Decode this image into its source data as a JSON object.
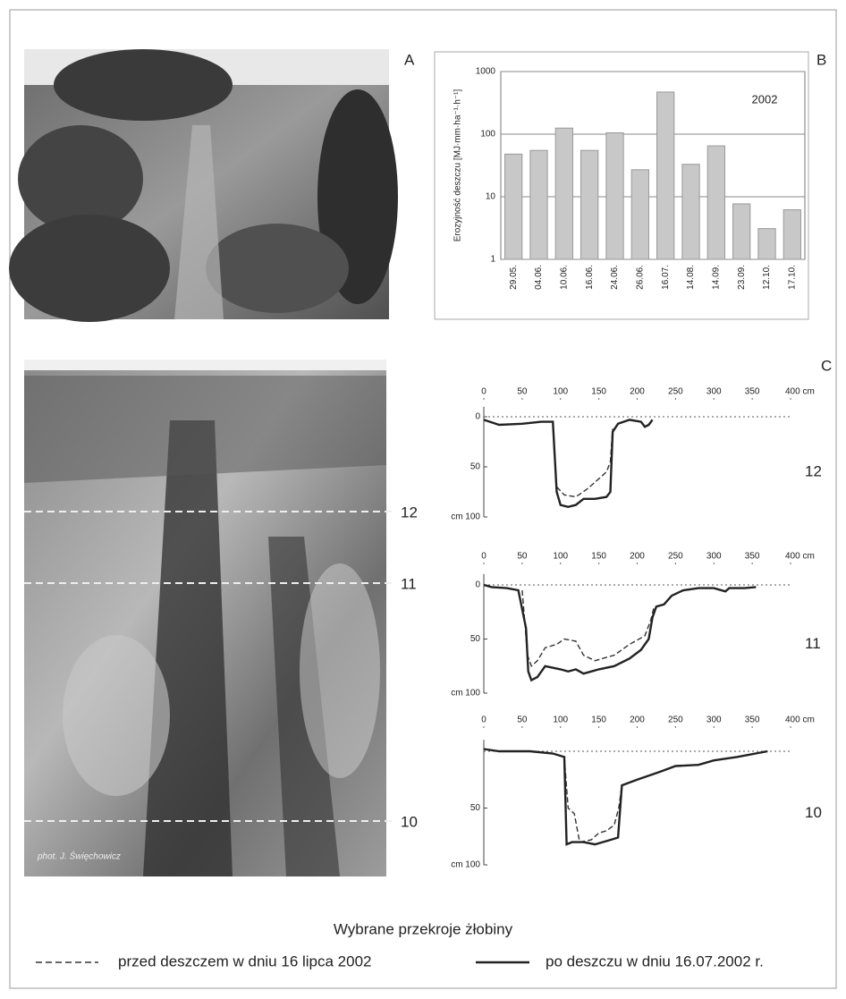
{
  "panel_labels": [
    "A",
    "B",
    "C"
  ],
  "photo_sections": [
    "12",
    "11",
    "10"
  ],
  "photo_credit": "phot. J. Święchowicz",
  "legend_title": "Wybrane przekroje żłobiny",
  "chart_data": [
    {
      "type": "bar",
      "y_label": "Erozyjność deszczu [MJ·mm·ha⁻¹·h⁻¹]",
      "annotation": "2002",
      "categories": [
        "29.05.",
        "04.06.",
        "10.06.",
        "16.06.",
        "24.06.",
        "26.06.",
        "16.07.",
        "14.08.",
        "14.09.",
        "23.09.",
        "12.10.",
        "17.10."
      ],
      "values": [
        48,
        55,
        125,
        55,
        105,
        27,
        470,
        33,
        65,
        7.7,
        3.1,
        6.2
      ],
      "color": "#c8c8c8",
      "ylim": [
        1,
        1000
      ],
      "yticks": [
        1,
        10,
        100,
        1000
      ],
      "log_scale": true,
      "grid": true
    },
    {
      "type": "line",
      "title": "12",
      "xlim": [
        0,
        400
      ],
      "xticks": [
        0,
        50,
        100,
        150,
        200,
        250,
        300,
        350,
        {
          "value": 400,
          "label": "400 cm"
        }
      ],
      "ylim": [
        -10,
        100
      ],
      "yticks": [
        0,
        50,
        {
          "value": 100,
          "label": "cm 100"
        }
      ],
      "y_inverted": true,
      "series": [
        {
          "name": "przed deszczem w dniu 16 lipca 2002",
          "color": "#333333",
          "dashed": true,
          "x": [
            95,
            105,
            120,
            135,
            150,
            160,
            165,
            168
          ],
          "values": [
            70,
            78,
            80,
            72,
            62,
            55,
            45,
            12
          ]
        },
        {
          "name": "po deszczu w dniu 16.07.2002 r.",
          "color": "#222222",
          "dashed": false,
          "x": [
            0,
            20,
            50,
            75,
            90,
            95,
            100,
            110,
            120,
            130,
            145,
            160,
            165,
            168,
            175,
            190,
            205,
            210,
            215,
            220
          ],
          "values": [
            3,
            8,
            7,
            5,
            5,
            75,
            88,
            90,
            88,
            82,
            82,
            80,
            75,
            15,
            7,
            3,
            5,
            10,
            8,
            3
          ]
        }
      ]
    },
    {
      "type": "line",
      "title": "11",
      "xlim": [
        0,
        400
      ],
      "xticks": [
        0,
        50,
        100,
        150,
        200,
        250,
        300,
        350,
        {
          "value": 400,
          "label": "400 cm"
        }
      ],
      "ylim": [
        -10,
        100
      ],
      "yticks": [
        0,
        50,
        {
          "value": 100,
          "label": "cm 100"
        }
      ],
      "y_inverted": true,
      "series": [
        {
          "name": "przed deszczem w dniu 16 lipca 2002",
          "color": "#333333",
          "dashed": true,
          "x": [
            50,
            57,
            62,
            70,
            80,
            95,
            105,
            120,
            130,
            145,
            170,
            190,
            210,
            218,
            222
          ],
          "values": [
            5,
            65,
            75,
            70,
            58,
            55,
            50,
            52,
            65,
            70,
            65,
            55,
            47,
            32,
            20
          ]
        },
        {
          "name": "po deszczu w dniu 16.07.2002 r.",
          "color": "#222222",
          "dashed": false,
          "x": [
            0,
            10,
            30,
            45,
            55,
            58,
            62,
            70,
            80,
            100,
            110,
            120,
            130,
            140,
            150,
            170,
            190,
            205,
            215,
            220,
            225,
            235,
            245,
            260,
            280,
            300,
            315,
            320,
            340,
            355
          ],
          "values": [
            0,
            2,
            3,
            5,
            40,
            80,
            88,
            85,
            75,
            78,
            80,
            78,
            82,
            80,
            78,
            75,
            68,
            60,
            50,
            30,
            20,
            18,
            10,
            5,
            3,
            3,
            6,
            3,
            3,
            2
          ]
        }
      ]
    },
    {
      "type": "line",
      "title": "10",
      "xlim": [
        0,
        400
      ],
      "xticks": [
        0,
        50,
        100,
        150,
        200,
        250,
        300,
        350,
        {
          "value": 400,
          "label": "400 cm"
        }
      ],
      "ylim": [
        -10,
        100
      ],
      "yticks": [
        50,
        {
          "value": 100,
          "label": "cm 100"
        }
      ],
      "y_inverted": true,
      "series": [
        {
          "name": "przed deszczem w dniu 16 lipca 2002",
          "color": "#333333",
          "dashed": true,
          "x": [
            105,
            110,
            118,
            125,
            140,
            150,
            160,
            170,
            176,
            180
          ],
          "values": [
            5,
            50,
            55,
            80,
            78,
            72,
            70,
            65,
            50,
            30
          ]
        },
        {
          "name": "po deszczu w dniu 16.07.2002 r.",
          "color": "#222222",
          "dashed": false,
          "x": [
            0,
            20,
            60,
            90,
            105,
            108,
            115,
            130,
            145,
            165,
            175,
            180,
            200,
            230,
            250,
            280,
            300,
            330,
            370
          ],
          "values": [
            -2,
            0,
            0,
            2,
            5,
            82,
            80,
            80,
            82,
            78,
            76,
            30,
            25,
            18,
            13,
            12,
            8,
            5,
            0
          ]
        }
      ]
    }
  ]
}
